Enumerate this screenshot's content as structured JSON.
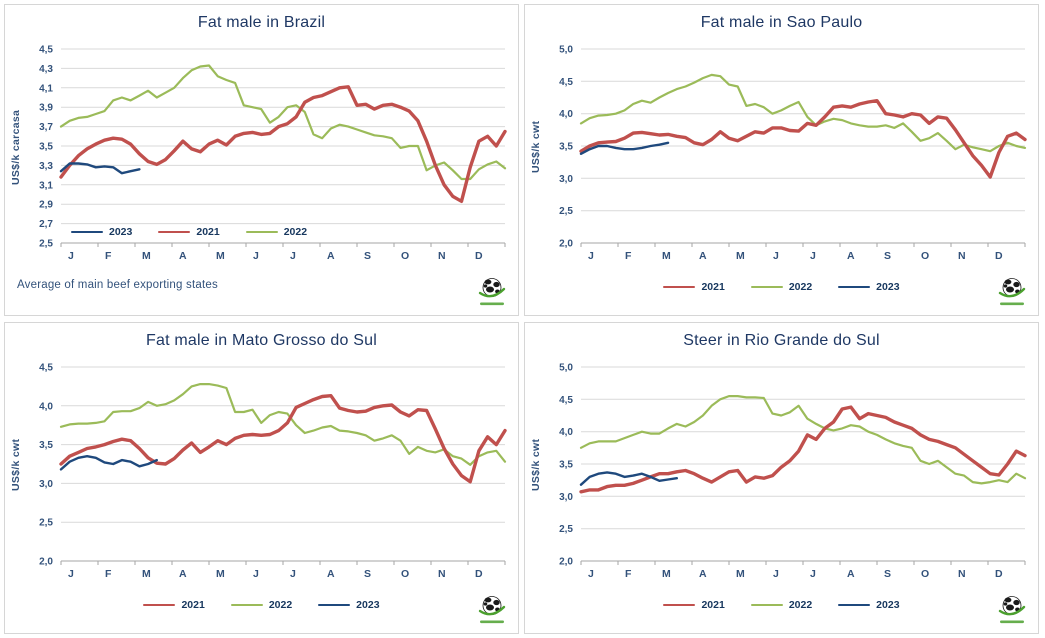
{
  "colors": {
    "red": "#C0504D",
    "green": "#9BBB59",
    "blue": "#1F497D",
    "grid": "#D9D9D9",
    "axis": "#A6A6A6",
    "title_text": "#1F3864",
    "tick_text": "#33527B",
    "logo_green": "#4BA02E"
  },
  "chart_data": [
    {
      "type": "line",
      "title": "Fat male in Brazil",
      "ylabel": "US$/k carcasa",
      "footnote": "Average  of main beef exporting states",
      "x_labels": [
        "J",
        "F",
        "M",
        "A",
        "M",
        "J",
        "J",
        "A",
        "S",
        "O",
        "N",
        "D"
      ],
      "ylim": [
        2.5,
        4.5
      ],
      "y_tick_labels": [
        "4,5",
        "4,3",
        "4,1",
        "3,9",
        "3,7",
        "3,5",
        "3,3",
        "3,1",
        "2,9",
        "2,7",
        "2,5"
      ],
      "y_tick_values": [
        4.5,
        4.3,
        4.1,
        3.9,
        3.7,
        3.5,
        3.3,
        3.1,
        2.9,
        2.7,
        2.5
      ],
      "grid": true,
      "legend_position": "inside-bottom-left",
      "legend_order": [
        "2023",
        "2021",
        "2022"
      ],
      "series": [
        {
          "name": "2022",
          "color_key": "green",
          "width": 2.2,
          "values": [
            3.7,
            3.76,
            3.79,
            3.8,
            3.83,
            3.86,
            3.97,
            4.0,
            3.97,
            4.02,
            4.07,
            4.0,
            4.05,
            4.1,
            4.2,
            4.28,
            4.32,
            4.33,
            4.22,
            4.18,
            4.15,
            3.92,
            3.9,
            3.88,
            3.74,
            3.8,
            3.9,
            3.92,
            3.85,
            3.62,
            3.58,
            3.68,
            3.72,
            3.7,
            3.67,
            3.64,
            3.61,
            3.6,
            3.58,
            3.48,
            3.5,
            3.5,
            3.25,
            3.3,
            3.33,
            3.25,
            3.16,
            3.16,
            3.26,
            3.31,
            3.34,
            3.27
          ]
        },
        {
          "name": "2021",
          "color_key": "red",
          "width": 3.4,
          "values": [
            3.18,
            3.3,
            3.4,
            3.47,
            3.52,
            3.56,
            3.58,
            3.57,
            3.52,
            3.42,
            3.34,
            3.31,
            3.36,
            3.45,
            3.55,
            3.47,
            3.44,
            3.52,
            3.56,
            3.51,
            3.6,
            3.63,
            3.64,
            3.62,
            3.63,
            3.7,
            3.73,
            3.8,
            3.95,
            4.0,
            4.02,
            4.06,
            4.1,
            4.11,
            3.92,
            3.93,
            3.88,
            3.92,
            3.93,
            3.9,
            3.86,
            3.76,
            3.55,
            3.3,
            3.1,
            2.98,
            2.93,
            3.28,
            3.55,
            3.6,
            3.5,
            3.65
          ]
        },
        {
          "name": "2023",
          "color_key": "blue",
          "width": 2.4,
          "values": [
            3.24,
            3.32,
            3.32,
            3.31,
            3.28,
            3.29,
            3.28,
            3.22,
            3.24,
            3.26
          ]
        }
      ]
    },
    {
      "type": "line",
      "title": "Fat male in Sao Paulo",
      "ylabel": "US$/k cwt",
      "x_labels": [
        "J",
        "F",
        "M",
        "A",
        "M",
        "J",
        "J",
        "A",
        "S",
        "O",
        "N",
        "D"
      ],
      "ylim": [
        2.0,
        5.0
      ],
      "y_tick_labels": [
        "5,0",
        "4,5",
        "4,0",
        "3,5",
        "3,0",
        "2,5",
        "2,0"
      ],
      "y_tick_values": [
        5.0,
        4.5,
        4.0,
        3.5,
        3.0,
        2.5,
        2.0
      ],
      "grid": true,
      "legend_position": "below",
      "legend_order": [
        "2021",
        "2022",
        "2023"
      ],
      "series": [
        {
          "name": "2022",
          "color_key": "green",
          "width": 2.2,
          "values": [
            3.85,
            3.93,
            3.97,
            3.98,
            4.0,
            4.05,
            4.15,
            4.2,
            4.17,
            4.25,
            4.32,
            4.38,
            4.42,
            4.48,
            4.55,
            4.6,
            4.58,
            4.45,
            4.42,
            4.12,
            4.15,
            4.1,
            4.0,
            4.05,
            4.12,
            4.18,
            3.95,
            3.82,
            3.88,
            3.92,
            3.9,
            3.85,
            3.82,
            3.8,
            3.8,
            3.82,
            3.78,
            3.85,
            3.72,
            3.58,
            3.62,
            3.7,
            3.58,
            3.45,
            3.52,
            3.48,
            3.45,
            3.42,
            3.5,
            3.55,
            3.5,
            3.47
          ]
        },
        {
          "name": "2021",
          "color_key": "red",
          "width": 3.4,
          "values": [
            3.42,
            3.5,
            3.55,
            3.56,
            3.57,
            3.62,
            3.7,
            3.71,
            3.69,
            3.67,
            3.68,
            3.65,
            3.63,
            3.55,
            3.52,
            3.6,
            3.72,
            3.62,
            3.58,
            3.65,
            3.72,
            3.7,
            3.78,
            3.78,
            3.74,
            3.73,
            3.85,
            3.82,
            3.95,
            4.1,
            4.12,
            4.1,
            4.15,
            4.18,
            4.2,
            4.0,
            3.98,
            3.95,
            4.0,
            3.98,
            3.85,
            3.95,
            3.93,
            3.75,
            3.55,
            3.35,
            3.2,
            3.02,
            3.4,
            3.65,
            3.7,
            3.6
          ]
        },
        {
          "name": "2023",
          "color_key": "blue",
          "width": 2.4,
          "values": [
            3.38,
            3.45,
            3.5,
            3.5,
            3.47,
            3.45,
            3.45,
            3.47,
            3.5,
            3.52,
            3.55
          ]
        }
      ]
    },
    {
      "type": "line",
      "title": "Fat male in Mato Grosso do Sul",
      "ylabel": "US$/k cwt",
      "x_labels": [
        "J",
        "F",
        "M",
        "A",
        "M",
        "J",
        "J",
        "A",
        "S",
        "O",
        "N",
        "D"
      ],
      "ylim": [
        2.0,
        4.5
      ],
      "y_tick_labels": [
        "4,5",
        "4,0",
        "3,5",
        "3,0",
        "2,5",
        "2,0"
      ],
      "y_tick_values": [
        4.5,
        4.0,
        3.5,
        3.0,
        2.5,
        2.0
      ],
      "grid": true,
      "legend_position": "below",
      "legend_order": [
        "2021",
        "2022",
        "2023"
      ],
      "series": [
        {
          "name": "2022",
          "color_key": "green",
          "width": 2.2,
          "values": [
            3.73,
            3.76,
            3.77,
            3.77,
            3.78,
            3.8,
            3.92,
            3.93,
            3.93,
            3.97,
            4.05,
            4.0,
            4.02,
            4.07,
            4.15,
            4.25,
            4.28,
            4.28,
            4.26,
            4.23,
            3.92,
            3.92,
            3.95,
            3.78,
            3.88,
            3.92,
            3.9,
            3.75,
            3.65,
            3.68,
            3.72,
            3.74,
            3.68,
            3.67,
            3.65,
            3.62,
            3.55,
            3.58,
            3.62,
            3.55,
            3.38,
            3.47,
            3.42,
            3.4,
            3.44,
            3.35,
            3.32,
            3.24,
            3.35,
            3.4,
            3.42,
            3.28
          ]
        },
        {
          "name": "2021",
          "color_key": "red",
          "width": 3.4,
          "values": [
            3.25,
            3.35,
            3.4,
            3.45,
            3.47,
            3.5,
            3.54,
            3.57,
            3.55,
            3.45,
            3.33,
            3.26,
            3.25,
            3.32,
            3.43,
            3.52,
            3.4,
            3.47,
            3.55,
            3.5,
            3.58,
            3.62,
            3.63,
            3.62,
            3.63,
            3.68,
            3.78,
            3.98,
            4.03,
            4.08,
            4.12,
            4.13,
            3.97,
            3.94,
            3.92,
            3.93,
            3.98,
            4.0,
            4.01,
            3.92,
            3.87,
            3.95,
            3.94,
            3.7,
            3.45,
            3.25,
            3.1,
            3.02,
            3.42,
            3.6,
            3.5,
            3.68
          ]
        },
        {
          "name": "2023",
          "color_key": "blue",
          "width": 2.4,
          "values": [
            3.18,
            3.28,
            3.33,
            3.35,
            3.33,
            3.27,
            3.25,
            3.3,
            3.28,
            3.22,
            3.25,
            3.3
          ]
        }
      ]
    },
    {
      "type": "line",
      "title": "Steer  in Rio Grande do Sul",
      "ylabel": "US$/k cwt",
      "x_labels": [
        "J",
        "F",
        "M",
        "A",
        "M",
        "J",
        "J",
        "A",
        "S",
        "O",
        "N",
        "D"
      ],
      "ylim": [
        2.0,
        5.0
      ],
      "y_tick_labels": [
        "5,0",
        "4,5",
        "4,0",
        "3,5",
        "3,0",
        "2,5",
        "2,0"
      ],
      "y_tick_values": [
        5.0,
        4.5,
        4.0,
        3.5,
        3.0,
        2.5,
        2.0
      ],
      "grid": true,
      "legend_position": "below",
      "legend_order": [
        "2021",
        "2022",
        "2023"
      ],
      "series": [
        {
          "name": "2022",
          "color_key": "green",
          "width": 2.2,
          "values": [
            3.75,
            3.82,
            3.85,
            3.85,
            3.85,
            3.9,
            3.95,
            4.0,
            3.97,
            3.97,
            4.05,
            4.12,
            4.08,
            4.15,
            4.25,
            4.4,
            4.5,
            4.55,
            4.55,
            4.53,
            4.53,
            4.52,
            4.28,
            4.25,
            4.3,
            4.4,
            4.2,
            4.12,
            4.05,
            4.02,
            4.05,
            4.1,
            4.08,
            4.0,
            3.95,
            3.88,
            3.82,
            3.78,
            3.75,
            3.55,
            3.5,
            3.55,
            3.45,
            3.35,
            3.32,
            3.22,
            3.2,
            3.22,
            3.25,
            3.22,
            3.35,
            3.28
          ]
        },
        {
          "name": "2021",
          "color_key": "red",
          "width": 3.4,
          "values": [
            3.07,
            3.1,
            3.1,
            3.15,
            3.17,
            3.17,
            3.2,
            3.25,
            3.3,
            3.35,
            3.35,
            3.38,
            3.4,
            3.35,
            3.28,
            3.22,
            3.3,
            3.38,
            3.4,
            3.22,
            3.3,
            3.28,
            3.32,
            3.45,
            3.55,
            3.7,
            3.95,
            3.88,
            4.05,
            4.15,
            4.35,
            4.38,
            4.2,
            4.28,
            4.25,
            4.22,
            4.15,
            4.1,
            4.05,
            3.95,
            3.88,
            3.85,
            3.8,
            3.75,
            3.65,
            3.55,
            3.45,
            3.35,
            3.33,
            3.5,
            3.7,
            3.63
          ]
        },
        {
          "name": "2023",
          "color_key": "blue",
          "width": 2.4,
          "values": [
            3.18,
            3.3,
            3.35,
            3.37,
            3.35,
            3.3,
            3.32,
            3.35,
            3.3,
            3.24,
            3.26,
            3.28
          ]
        }
      ]
    }
  ]
}
